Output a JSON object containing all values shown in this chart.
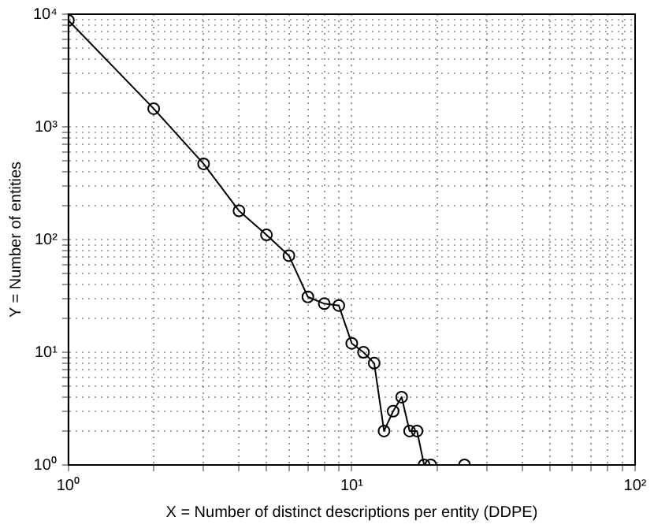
{
  "chart_data": {
    "type": "line",
    "xlabel": "X = Number of distinct descriptions per entity (DDPE)",
    "ylabel": "Y = Number of entities",
    "x": [
      1,
      2,
      3,
      4,
      5,
      6,
      7,
      8,
      9,
      10,
      11,
      12,
      13,
      14,
      15,
      16,
      17,
      18,
      19,
      25
    ],
    "series": [
      {
        "color": "#000000",
        "values": [
          8800,
          1450,
          470,
          180,
          110,
          72,
          31,
          27,
          26,
          12,
          10,
          8,
          2,
          3,
          4,
          2,
          2,
          1,
          1,
          1
        ]
      }
    ],
    "log": "xy",
    "xlim": [
      1,
      100
    ],
    "ylim": [
      1,
      10000
    ],
    "xticks": [
      {
        "value": 1,
        "label": "10⁰"
      },
      {
        "value": 2,
        "label": null
      },
      {
        "value": 3,
        "label": null
      },
      {
        "value": 4,
        "label": null
      },
      {
        "value": 5,
        "label": null
      },
      {
        "value": 6,
        "label": null
      },
      {
        "value": 7,
        "label": null
      },
      {
        "value": 8,
        "label": null
      },
      {
        "value": 9,
        "label": null
      },
      {
        "value": 10,
        "label": "10¹"
      },
      {
        "value": 20,
        "label": null
      },
      {
        "value": 30,
        "label": null
      },
      {
        "value": 40,
        "label": null
      },
      {
        "value": 50,
        "label": null
      },
      {
        "value": 60,
        "label": null
      },
      {
        "value": 70,
        "label": null
      },
      {
        "value": 80,
        "label": null
      },
      {
        "value": 90,
        "label": null
      },
      {
        "value": 100,
        "label": "10²"
      }
    ],
    "yticks": [
      {
        "value": 1,
        "label": "10⁰"
      },
      {
        "value": 2,
        "label": null
      },
      {
        "value": 3,
        "label": null
      },
      {
        "value": 4,
        "label": null
      },
      {
        "value": 5,
        "label": null
      },
      {
        "value": 6,
        "label": null
      },
      {
        "value": 7,
        "label": null
      },
      {
        "value": 8,
        "label": null
      },
      {
        "value": 9,
        "label": null
      },
      {
        "value": 10,
        "label": "10¹"
      },
      {
        "value": 20,
        "label": null
      },
      {
        "value": 30,
        "label": null
      },
      {
        "value": 40,
        "label": null
      },
      {
        "value": 50,
        "label": null
      },
      {
        "value": 60,
        "label": null
      },
      {
        "value": 70,
        "label": null
      },
      {
        "value": 80,
        "label": null
      },
      {
        "value": 90,
        "label": null
      },
      {
        "value": 100,
        "label": "10²"
      },
      {
        "value": 200,
        "label": null
      },
      {
        "value": 300,
        "label": null
      },
      {
        "value": 400,
        "label": null
      },
      {
        "value": 500,
        "label": null
      },
      {
        "value": 600,
        "label": null
      },
      {
        "value": 700,
        "label": null
      },
      {
        "value": 800,
        "label": null
      },
      {
        "value": 900,
        "label": null
      },
      {
        "value": 1000,
        "label": "10³"
      },
      {
        "value": 2000,
        "label": null
      },
      {
        "value": 3000,
        "label": null
      },
      {
        "value": 4000,
        "label": null
      },
      {
        "value": 5000,
        "label": null
      },
      {
        "value": 6000,
        "label": null
      },
      {
        "value": 7000,
        "label": null
      },
      {
        "value": 8000,
        "label": null
      },
      {
        "value": 9000,
        "label": null
      },
      {
        "value": 10000,
        "label": "10⁴"
      }
    ],
    "grid": true,
    "legend": false,
    "marker": "circle",
    "line_style": "solid"
  }
}
